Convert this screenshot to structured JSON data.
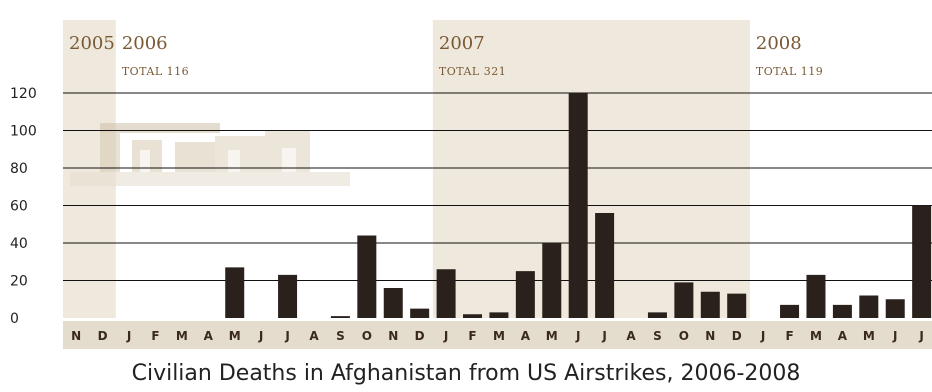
{
  "chart_data": {
    "type": "bar",
    "title": "Civilian Deaths in Afghanistan from US Airstrikes, 2006-2008",
    "ylim": [
      0,
      120
    ],
    "yticks": [
      0,
      20,
      40,
      60,
      80,
      100,
      120
    ],
    "years": [
      {
        "label": "2005",
        "total": ""
      },
      {
        "label": "2006",
        "total": "TOTAL 116"
      },
      {
        "label": "2007",
        "total": "TOTAL 321"
      },
      {
        "label": "2008",
        "total": "TOTAL 119"
      }
    ],
    "categories": [
      "N",
      "D",
      "J",
      "F",
      "M",
      "A",
      "M",
      "J",
      "J",
      "A",
      "S",
      "O",
      "N",
      "D",
      "J",
      "F",
      "M",
      "A",
      "M",
      "J",
      "J",
      "A",
      "S",
      "O",
      "N",
      "D",
      "J",
      "F",
      "M",
      "A",
      "M",
      "J",
      "J"
    ],
    "values": [
      0,
      0,
      0,
      0,
      0,
      0,
      27,
      0,
      23,
      0,
      1,
      44,
      16,
      5,
      26,
      2,
      3,
      25,
      40,
      120,
      56,
      0,
      3,
      19,
      14,
      13,
      0,
      7,
      23,
      7,
      12,
      10,
      60
    ],
    "colors": {
      "bar": "#2a201c",
      "shade": "#efe9dd",
      "grid": "#111111",
      "year_text": "#7a5a34",
      "tick_text": "#3a2a1c",
      "axis_band": "#e4dccd"
    }
  }
}
